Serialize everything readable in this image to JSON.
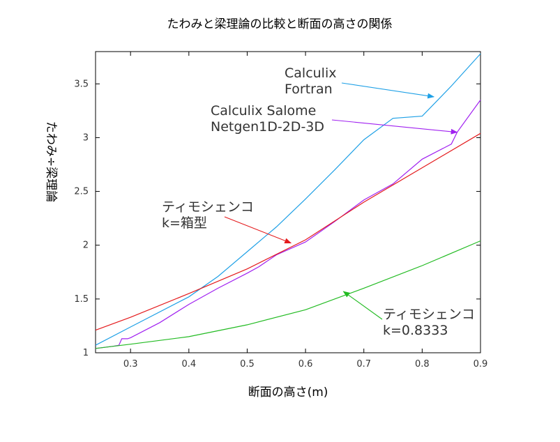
{
  "chart_data": {
    "type": "line",
    "title": "たわみと梁理論の比較と断面の高さの関係",
    "xlabel": "断面の高さ(m)",
    "ylabel": "たわみ÷梁理論",
    "xlim": [
      0.24,
      0.9
    ],
    "ylim": [
      1.0,
      3.8
    ],
    "xticks": [
      "0.3",
      "0.4",
      "0.5",
      "0.6",
      "0.7",
      "0.8",
      "0.9"
    ],
    "yticks": [
      "1",
      "1.5",
      "2",
      "2.5",
      "3",
      "3.5"
    ],
    "grid": false,
    "series": [
      {
        "key": "calculix_fortran",
        "color": "#1ea0e6",
        "points": [
          [
            0.24,
            1.07
          ],
          [
            0.3,
            1.24
          ],
          [
            0.4,
            1.52
          ],
          [
            0.45,
            1.71
          ],
          [
            0.5,
            1.94
          ],
          [
            0.55,
            2.17
          ],
          [
            0.6,
            2.43
          ],
          [
            0.65,
            2.7
          ],
          [
            0.7,
            2.98
          ],
          [
            0.75,
            3.18
          ],
          [
            0.8,
            3.2
          ],
          [
            0.85,
            3.48
          ],
          [
            0.9,
            3.78
          ]
        ]
      },
      {
        "key": "calculix_salome",
        "color": "#a020f0",
        "points": [
          [
            0.24,
            1.04
          ],
          [
            0.27,
            1.06
          ],
          [
            0.28,
            1.07
          ],
          [
            0.285,
            1.13
          ],
          [
            0.29,
            1.13
          ],
          [
            0.295,
            1.13
          ],
          [
            0.3,
            1.14
          ],
          [
            0.35,
            1.28
          ],
          [
            0.4,
            1.45
          ],
          [
            0.45,
            1.6
          ],
          [
            0.5,
            1.74
          ],
          [
            0.52,
            1.8
          ],
          [
            0.55,
            1.91
          ],
          [
            0.6,
            2.03
          ],
          [
            0.65,
            2.22
          ],
          [
            0.7,
            2.42
          ],
          [
            0.75,
            2.57
          ],
          [
            0.8,
            2.8
          ],
          [
            0.85,
            2.94
          ],
          [
            0.86,
            3.05
          ],
          [
            0.9,
            3.35
          ]
        ]
      },
      {
        "key": "timoshenko_box",
        "color": "#e41a1c",
        "points": [
          [
            0.24,
            1.21
          ],
          [
            0.3,
            1.33
          ],
          [
            0.4,
            1.55
          ],
          [
            0.5,
            1.78
          ],
          [
            0.6,
            2.05
          ],
          [
            0.7,
            2.4
          ],
          [
            0.8,
            2.72
          ],
          [
            0.9,
            3.04
          ]
        ]
      },
      {
        "key": "timoshenko_k",
        "color": "#22bb22",
        "points": [
          [
            0.24,
            1.04
          ],
          [
            0.3,
            1.08
          ],
          [
            0.4,
            1.15
          ],
          [
            0.5,
            1.26
          ],
          [
            0.6,
            1.4
          ],
          [
            0.7,
            1.6
          ],
          [
            0.8,
            1.81
          ],
          [
            0.9,
            2.04
          ]
        ]
      }
    ],
    "annotations": [
      {
        "key": "calculix_fortran",
        "lines": [
          "Calculix",
          "Fortran"
        ],
        "color": "#1ea0e6",
        "target": [
          0.82,
          3.38
        ]
      },
      {
        "key": "calculix_salome",
        "lines": [
          "Calculix Salome",
          "Netgen1D-2D-3D"
        ],
        "color": "#a020f0",
        "target": [
          0.86,
          3.05
        ]
      },
      {
        "key": "timoshenko_box",
        "lines": [
          "ティモシェンコ",
          "k=箱型"
        ],
        "color": "#e41a1c",
        "target": [
          0.575,
          2.02
        ]
      },
      {
        "key": "timoshenko_k",
        "lines": [
          "ティモシェンコ",
          "k=0.8333"
        ],
        "color": "#22bb22",
        "target": [
          0.665,
          1.57
        ]
      }
    ]
  }
}
